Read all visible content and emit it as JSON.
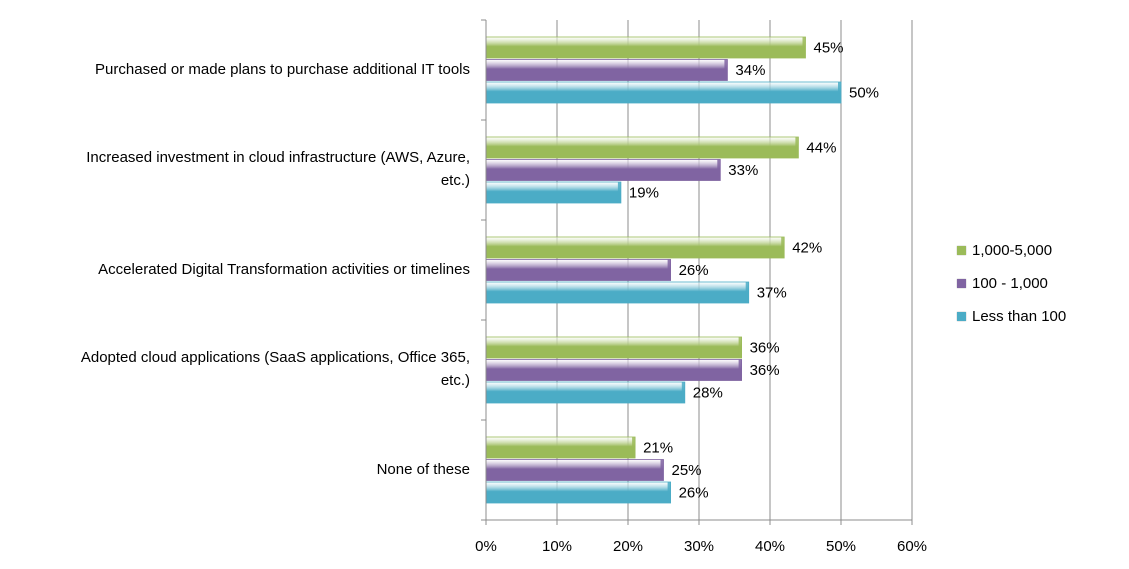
{
  "chart_data": {
    "type": "bar",
    "orientation": "horizontal",
    "categories": [
      "Purchased or made plans to purchase additional IT tools",
      "Increased investment in cloud infrastructure (AWS, Azure, etc.)",
      "Accelerated Digital Transformation activities or timelines",
      "Adopted cloud applications (SaaS applications, Office 365, etc.)",
      "None of these"
    ],
    "category_lines": [
      [
        "Purchased or made plans to purchase additional IT tools"
      ],
      [
        "Increased investment in cloud infrastructure (AWS, Azure,",
        "etc.)"
      ],
      [
        "Accelerated Digital Transformation activities or timelines"
      ],
      [
        "Adopted cloud applications (SaaS applications, Office 365,",
        "etc.)"
      ],
      [
        "None of these"
      ]
    ],
    "series": [
      {
        "name": "1,000-5,000",
        "color": "#9bbb59",
        "values": [
          45,
          44,
          42,
          36,
          21
        ],
        "labels": [
          "45%",
          "44%",
          "42%",
          "36%",
          "21%"
        ]
      },
      {
        "name": "100 - 1,000",
        "color": "#8064a2",
        "values": [
          34,
          33,
          26,
          36,
          25
        ],
        "labels": [
          "34%",
          "33%",
          "26%",
          "36%",
          "25%"
        ]
      },
      {
        "name": "Less than 100",
        "color": "#4bacc6",
        "values": [
          50,
          19,
          37,
          28,
          26
        ],
        "labels": [
          "50%",
          "19%",
          "37%",
          "28%",
          "26%"
        ]
      }
    ],
    "xlim": [
      0,
      60
    ],
    "x_ticks": [
      "0%",
      "10%",
      "20%",
      "30%",
      "40%",
      "50%",
      "60%"
    ],
    "x_tick_values": [
      0,
      10,
      20,
      30,
      40,
      50,
      60
    ],
    "grid": true,
    "legend_position": "right"
  }
}
